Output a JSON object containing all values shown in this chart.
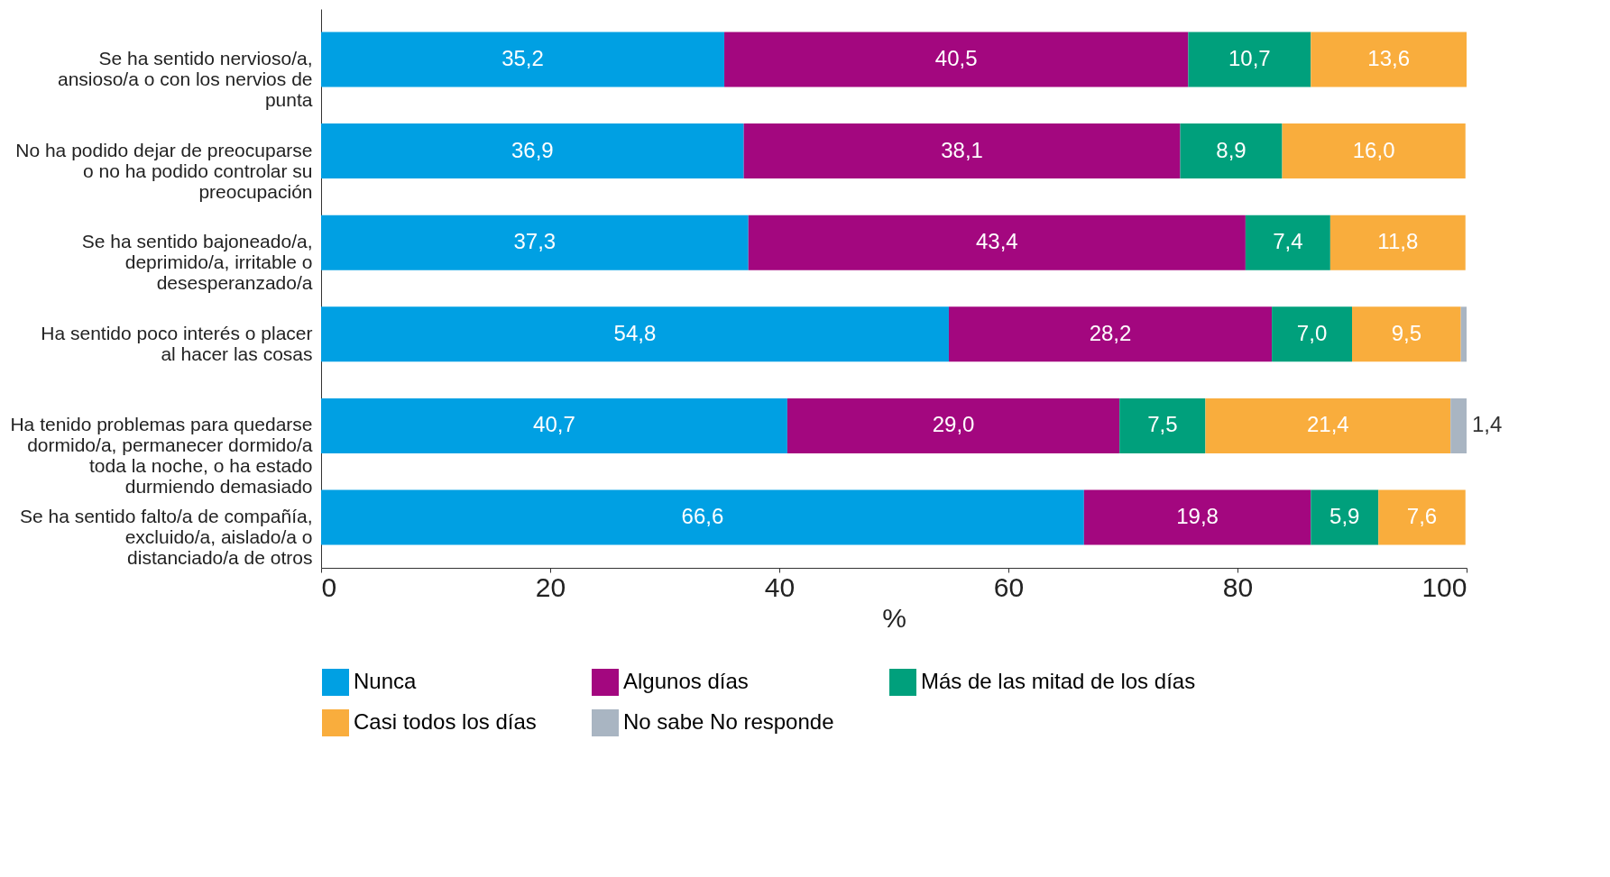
{
  "chart_data": {
    "type": "bar",
    "orientation": "horizontal",
    "stacked": true,
    "xlabel": "%",
    "categories": [
      "Se ha sentido nervioso/a, ansioso/a o con los nervios de punta",
      "No ha podido dejar de preocuparse o no ha podido controlar su preocupación",
      "Se ha sentido bajoneado/a, deprimido/a, irritable o desesperanzado/a",
      "Ha sentido poco interés o placer al hacer las cosas",
      "Ha tenido problemas para quedarse dormido/a, permanecer dormido/a toda la noche, o ha estado durmiendo demasiado",
      "Se ha sentido falto/a de compañía, excluido/a, aislado/a o distanciado/a de otros"
    ],
    "series": [
      {
        "name": "Nunca",
        "color": "#00a0e3",
        "values": [
          35.2,
          36.9,
          37.3,
          54.8,
          40.7,
          66.6
        ],
        "value_labels": [
          "35,2",
          "36,9",
          "37,3",
          "54,8",
          "40,7",
          "66,6"
        ]
      },
      {
        "name": "Algunos días",
        "color": "#a3077f",
        "values": [
          40.5,
          38.1,
          43.4,
          28.2,
          29.0,
          19.8
        ],
        "value_labels": [
          "40,5",
          "38,1",
          "43,4",
          "28,2",
          "29,0",
          "19,8"
        ]
      },
      {
        "name": "Más de las mitad de los días",
        "color": "#00a07c",
        "values": [
          10.7,
          8.9,
          7.4,
          7.0,
          7.5,
          5.9
        ],
        "value_labels": [
          "10,7",
          "8,9",
          "7,4",
          "7,0",
          "7,5",
          "5,9"
        ]
      },
      {
        "name": "Casi todos los días",
        "color": "#f9ad3d",
        "values": [
          13.6,
          16.0,
          11.8,
          9.5,
          21.4,
          7.6
        ],
        "value_labels": [
          "13,6",
          "16,0",
          "11,8",
          "9,5",
          "21,4",
          "7,6"
        ]
      },
      {
        "name": "No sabe No responde",
        "color": "#a9b5c2",
        "values": [
          null,
          null,
          null,
          0.5,
          1.4,
          null
        ],
        "value_labels": [
          null,
          null,
          null,
          null,
          "1,4",
          null
        ]
      }
    ],
    "xlim": [
      0,
      100
    ],
    "xticks": [
      0,
      20,
      40,
      60,
      80,
      100
    ],
    "grid": false,
    "legend": "bottom"
  }
}
